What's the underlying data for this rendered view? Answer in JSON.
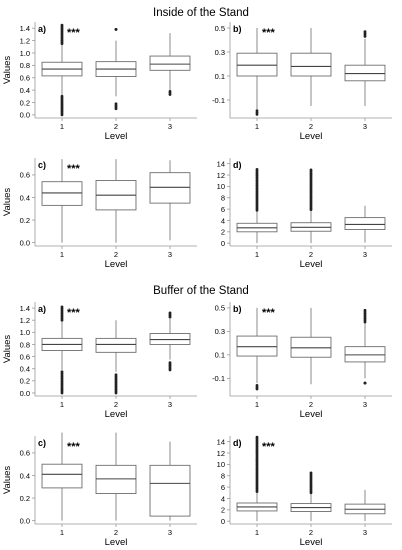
{
  "sections": [
    {
      "title": "Inside of the Stand"
    },
    {
      "title": "Buffer of the Stand"
    }
  ],
  "chart_data": [
    {
      "section": "Inside of the Stand",
      "panel": "a)",
      "type": "boxplot",
      "significance": "***",
      "xlabel": "Level",
      "ylabel": "Values",
      "ylim": [
        -0.05,
        1.5
      ],
      "yticks": [
        0.0,
        0.2,
        0.4,
        0.6,
        0.8,
        1.0,
        1.2,
        1.4
      ],
      "ytick_labels": [
        "0.0",
        "0.2",
        "0.4",
        "0.6",
        "0.8",
        "1.0",
        "1.2",
        "1.4"
      ],
      "categories": [
        "1",
        "2",
        "3"
      ],
      "boxes": [
        {
          "q1": 0.63,
          "median": 0.74,
          "q3": 0.85,
          "whisker_low": 0.3,
          "whisker_high": 1.15,
          "outliers_low": [
            0.0,
            0.3
          ],
          "outliers_high": [
            1.15,
            1.45
          ]
        },
        {
          "q1": 0.62,
          "median": 0.74,
          "q3": 0.86,
          "whisker_low": 0.3,
          "whisker_high": 1.2,
          "outliers_low": [
            0.1,
            0.18
          ],
          "outliers_high": [
            1.38,
            1.38
          ]
        },
        {
          "q1": 0.72,
          "median": 0.82,
          "q3": 0.95,
          "whisker_low": 0.4,
          "whisker_high": 1.32,
          "outliers_low": [
            0.33,
            0.38
          ],
          "outliers_high": []
        }
      ]
    },
    {
      "section": "Inside of the Stand",
      "panel": "b)",
      "type": "boxplot",
      "significance": "***",
      "xlabel": "Level",
      "ylabel": "",
      "ylim": [
        -0.25,
        0.55
      ],
      "yticks": [
        -0.1,
        0.1,
        0.3,
        0.5
      ],
      "ytick_labels": [
        "-0.1",
        "0.1",
        "0.3",
        "0.5"
      ],
      "categories": [
        "1",
        "2",
        "3"
      ],
      "boxes": [
        {
          "q1": 0.1,
          "median": 0.19,
          "q3": 0.29,
          "whisker_low": -0.18,
          "whisker_high": 0.5,
          "outliers_low": [
            -0.22,
            -0.19
          ],
          "outliers_high": []
        },
        {
          "q1": 0.1,
          "median": 0.18,
          "q3": 0.29,
          "whisker_low": -0.15,
          "whisker_high": 0.5,
          "outliers_low": [],
          "outliers_high": []
        },
        {
          "q1": 0.06,
          "median": 0.12,
          "q3": 0.19,
          "whisker_low": -0.15,
          "whisker_high": 0.41,
          "outliers_low": [],
          "outliers_high": [
            0.43,
            0.47
          ]
        }
      ]
    },
    {
      "section": "Inside of the Stand",
      "panel": "c)",
      "type": "boxplot",
      "significance": "***",
      "xlabel": "Level",
      "ylabel": "Values",
      "ylim": [
        -0.03,
        0.75
      ],
      "yticks": [
        0.0,
        0.2,
        0.4,
        0.6
      ],
      "ytick_labels": [
        "0.0",
        "0.2",
        "0.4",
        "0.6"
      ],
      "categories": [
        "1",
        "2",
        "3"
      ],
      "boxes": [
        {
          "q1": 0.33,
          "median": 0.44,
          "q3": 0.54,
          "whisker_low": 0.0,
          "whisker_high": 0.74,
          "outliers_low": [],
          "outliers_high": []
        },
        {
          "q1": 0.29,
          "median": 0.42,
          "q3": 0.55,
          "whisker_low": 0.0,
          "whisker_high": 0.74,
          "outliers_low": [],
          "outliers_high": []
        },
        {
          "q1": 0.35,
          "median": 0.49,
          "q3": 0.62,
          "whisker_low": 0.02,
          "whisker_high": 0.73,
          "outliers_low": [],
          "outliers_high": []
        }
      ]
    },
    {
      "section": "Inside of the Stand",
      "panel": "d)",
      "type": "boxplot",
      "significance": "",
      "xlabel": "Level",
      "ylabel": "",
      "ylim": [
        -0.5,
        15
      ],
      "yticks": [
        0,
        2,
        4,
        6,
        8,
        10,
        12,
        14
      ],
      "ytick_labels": [
        "0",
        "2",
        "4",
        "6",
        "8",
        "10",
        "12",
        "14"
      ],
      "categories": [
        "1",
        "2",
        "3"
      ],
      "boxes": [
        {
          "q1": 2.0,
          "median": 2.7,
          "q3": 3.5,
          "whisker_low": 0.0,
          "whisker_high": 5.7,
          "outliers_low": [],
          "outliers_high": [
            5.8,
            13.0
          ]
        },
        {
          "q1": 2.1,
          "median": 2.8,
          "q3": 3.6,
          "whisker_low": 0.0,
          "whisker_high": 5.8,
          "outliers_low": [],
          "outliers_high": [
            5.9,
            12.9
          ]
        },
        {
          "q1": 2.4,
          "median": 3.3,
          "q3": 4.5,
          "whisker_low": 0.1,
          "whisker_high": 6.6,
          "outliers_low": [],
          "outliers_high": []
        }
      ]
    },
    {
      "section": "Buffer of the Stand",
      "panel": "a)",
      "type": "boxplot",
      "significance": "***",
      "xlabel": "Level",
      "ylabel": "Values",
      "ylim": [
        -0.05,
        1.5
      ],
      "yticks": [
        0.0,
        0.2,
        0.4,
        0.6,
        0.8,
        1.0,
        1.2,
        1.4
      ],
      "ytick_labels": [
        "0.0",
        "0.2",
        "0.4",
        "0.6",
        "0.8",
        "1.0",
        "1.2",
        "1.4"
      ],
      "categories": [
        "1",
        "2",
        "3"
      ],
      "boxes": [
        {
          "q1": 0.7,
          "median": 0.8,
          "q3": 0.9,
          "whisker_low": 0.38,
          "whisker_high": 1.2,
          "outliers_low": [
            0.0,
            0.35
          ],
          "outliers_high": [
            1.2,
            1.42
          ]
        },
        {
          "q1": 0.67,
          "median": 0.8,
          "q3": 0.9,
          "whisker_low": 0.35,
          "whisker_high": 1.2,
          "outliers_low": [
            0.0,
            0.3
          ],
          "outliers_high": []
        },
        {
          "q1": 0.8,
          "median": 0.88,
          "q3": 0.98,
          "whisker_low": 0.55,
          "whisker_high": 1.22,
          "outliers_low": [
            0.38,
            0.5
          ],
          "outliers_high": [
            1.25,
            1.32
          ]
        }
      ]
    },
    {
      "section": "Buffer of the Stand",
      "panel": "b)",
      "type": "boxplot",
      "significance": "***",
      "xlabel": "Level",
      "ylabel": "",
      "ylim": [
        -0.25,
        0.55
      ],
      "yticks": [
        -0.1,
        0.1,
        0.3,
        0.5
      ],
      "ytick_labels": [
        "-0.1",
        "0.1",
        "0.3",
        "0.5"
      ],
      "categories": [
        "1",
        "2",
        "3"
      ],
      "boxes": [
        {
          "q1": 0.09,
          "median": 0.17,
          "q3": 0.26,
          "whisker_low": -0.14,
          "whisker_high": 0.5,
          "outliers_low": [
            -0.19,
            -0.16
          ],
          "outliers_high": []
        },
        {
          "q1": 0.08,
          "median": 0.16,
          "q3": 0.25,
          "whisker_low": -0.15,
          "whisker_high": 0.5,
          "outliers_low": [],
          "outliers_high": []
        },
        {
          "q1": 0.04,
          "median": 0.1,
          "q3": 0.17,
          "whisker_low": -0.1,
          "whisker_high": 0.37,
          "outliers_low": [
            -0.14,
            -0.14
          ],
          "outliers_high": [
            0.38,
            0.48
          ]
        }
      ]
    },
    {
      "section": "Buffer of the Stand",
      "panel": "c)",
      "type": "boxplot",
      "significance": "***",
      "xlabel": "Level",
      "ylabel": "Values",
      "ylim": [
        -0.03,
        0.75
      ],
      "yticks": [
        0.0,
        0.2,
        0.4,
        0.6
      ],
      "ytick_labels": [
        "0.0",
        "0.2",
        "0.4",
        "0.6"
      ],
      "categories": [
        "1",
        "2",
        "3"
      ],
      "boxes": [
        {
          "q1": 0.29,
          "median": 0.41,
          "q3": 0.5,
          "whisker_low": 0.0,
          "whisker_high": 0.78,
          "outliers_low": [],
          "outliers_high": []
        },
        {
          "q1": 0.24,
          "median": 0.37,
          "q3": 0.49,
          "whisker_low": 0.0,
          "whisker_high": 0.78,
          "outliers_low": [],
          "outliers_high": []
        },
        {
          "q1": 0.04,
          "median": 0.33,
          "q3": 0.49,
          "whisker_low": 0.0,
          "whisker_high": 0.7,
          "outliers_low": [],
          "outliers_high": []
        }
      ]
    },
    {
      "section": "Buffer of the Stand",
      "panel": "d)",
      "type": "boxplot",
      "significance": "***",
      "xlabel": "Level",
      "ylabel": "",
      "ylim": [
        -0.5,
        15
      ],
      "yticks": [
        0,
        2,
        4,
        6,
        8,
        10,
        12,
        14
      ],
      "ytick_labels": [
        "0",
        "2",
        "4",
        "6",
        "8",
        "10",
        "12",
        "14"
      ],
      "categories": [
        "1",
        "2",
        "3"
      ],
      "boxes": [
        {
          "q1": 1.8,
          "median": 2.5,
          "q3": 3.2,
          "whisker_low": 0.0,
          "whisker_high": 5.0,
          "outliers_low": [],
          "outliers_high": [
            5.2,
            14.8
          ]
        },
        {
          "q1": 1.7,
          "median": 2.4,
          "q3": 3.1,
          "whisker_low": 0.0,
          "whisker_high": 4.9,
          "outliers_low": [],
          "outliers_high": [
            5.0,
            8.5
          ]
        },
        {
          "q1": 1.3,
          "median": 2.1,
          "q3": 3.0,
          "whisker_low": 0.0,
          "whisker_high": 5.5,
          "outliers_low": [],
          "outliers_high": []
        }
      ]
    }
  ]
}
